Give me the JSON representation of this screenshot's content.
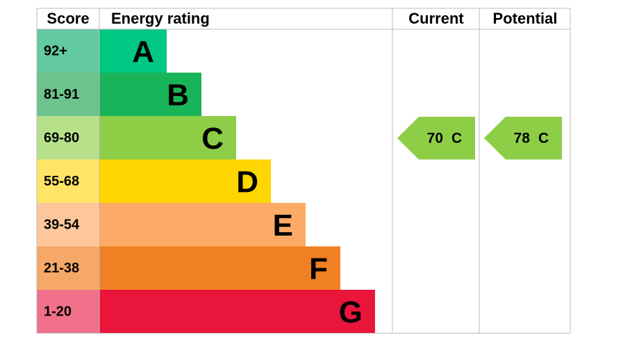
{
  "header": {
    "score": "Score",
    "rating": "Energy rating",
    "current": "Current",
    "potential": "Potential"
  },
  "bands": [
    {
      "score": "92+",
      "letter": "A",
      "color": "#00c781",
      "light": "#63c9a0"
    },
    {
      "score": "81-91",
      "letter": "B",
      "color": "#19b459",
      "light": "#6cc38c"
    },
    {
      "score": "69-80",
      "letter": "C",
      "color": "#8dce46",
      "light": "#b6e08a"
    },
    {
      "score": "55-68",
      "letter": "D",
      "color": "#ffd500",
      "light": "#ffe566"
    },
    {
      "score": "39-54",
      "letter": "E",
      "color": "#fcaa65",
      "light": "#fdc79b"
    },
    {
      "score": "21-38",
      "letter": "F",
      "color": "#ef8023",
      "light": "#f5a867"
    },
    {
      "score": "1-20",
      "letter": "G",
      "color": "#e9153b",
      "light": "#f07189"
    }
  ],
  "current": {
    "value": 70,
    "letter": "C"
  },
  "potential": {
    "value": 78,
    "letter": "C"
  }
}
